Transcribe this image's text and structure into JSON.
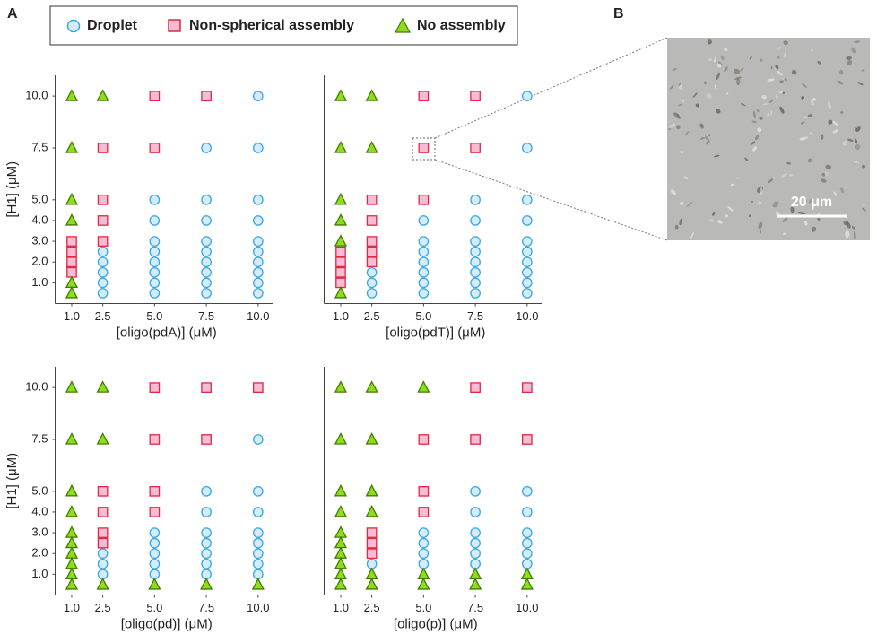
{
  "panel_labels": [
    "A",
    "B"
  ],
  "image": {
    "scale_bar": "20 μm"
  },
  "chart_data": [
    {
      "type": "scatter",
      "xlabel": "[oligo(pdA)] (μM)",
      "ylabel": "[H1] (μM)",
      "xlim": [
        0.2,
        10.7
      ],
      "ylim": [
        0,
        11
      ],
      "xticks": [
        {
          "value": 1,
          "label": "1.0"
        },
        {
          "value": 2.5,
          "label": "2.5"
        },
        {
          "value": 5,
          "label": "5.0"
        },
        {
          "value": 7.5,
          "label": "7.5"
        },
        {
          "value": 10,
          "label": "10.0"
        }
      ],
      "yticks": [
        {
          "value": 1,
          "label": "1.0"
        },
        {
          "value": 2,
          "label": "2.0"
        },
        {
          "value": 3,
          "label": "3.0"
        },
        {
          "value": 4,
          "label": "4.0"
        },
        {
          "value": 5,
          "label": "5.0"
        },
        7.5,
        {
          "value": 10,
          "label": "10.0"
        }
      ],
      "series": [
        {
          "name": "Droplet",
          "marker": "circle",
          "color": "#3aa7e6",
          "fill": "#d4ecfb",
          "x": [
            2.5,
            2.5,
            2.5,
            2.5,
            2.5,
            5,
            5,
            5,
            5,
            5,
            5,
            5,
            5,
            7.5,
            7.5,
            7.5,
            7.5,
            7.5,
            7.5,
            7.5,
            7.5,
            7.5,
            10,
            10,
            10,
            10,
            10,
            10,
            10,
            10,
            10,
            10
          ],
          "y": [
            2.5,
            2,
            1.5,
            1,
            0.5,
            5,
            4,
            3,
            2.5,
            2,
            1.5,
            1,
            0.5,
            7.5,
            5,
            4,
            3,
            2.5,
            2,
            1.5,
            1,
            0.5,
            10,
            7.5,
            5,
            4,
            3,
            2.5,
            2,
            1.5,
            1,
            0.5
          ]
        },
        {
          "name": "Non-spherical assembly",
          "marker": "square",
          "color": "#e0283f",
          "fill": "#f6bcd6",
          "x": [
            1,
            1,
            1,
            1,
            2.5,
            2.5,
            2.5,
            2.5,
            5,
            5,
            7.5
          ],
          "y": [
            3,
            2.5,
            2,
            1.5,
            7.5,
            5,
            4,
            3,
            10,
            7.5,
            10
          ]
        },
        {
          "name": "No assembly",
          "marker": "triangle",
          "color": "#3f7d00",
          "fill": "#8edc1a",
          "x": [
            1,
            1,
            1,
            1,
            1,
            1,
            2.5
          ],
          "y": [
            10,
            7.5,
            5,
            4,
            1,
            0.5,
            10
          ]
        }
      ]
    },
    {
      "type": "scatter",
      "xlabel": "[oligo(pdT)] (μM)",
      "xlim": [
        0.2,
        10.7
      ],
      "ylim": [
        0,
        11
      ],
      "xticks": [
        {
          "value": 1,
          "label": "1.0"
        },
        {
          "value": 2.5,
          "label": "2.5"
        },
        {
          "value": 5,
          "label": "5.0"
        },
        {
          "value": 7.5,
          "label": "7.5"
        },
        {
          "value": 10,
          "label": "10.0"
        }
      ],
      "series": [
        {
          "name": "Droplet",
          "marker": "circle",
          "color": "#3aa7e6",
          "fill": "#d4ecfb",
          "x": [
            2.5,
            2.5,
            2.5,
            5,
            5,
            5,
            5,
            5,
            5,
            5,
            7.5,
            7.5,
            7.5,
            7.5,
            7.5,
            7.5,
            7.5,
            7.5,
            10,
            10,
            10,
            10,
            10,
            10,
            10,
            10,
            10,
            10
          ],
          "y": [
            1.5,
            1,
            0.5,
            4,
            3,
            2.5,
            2,
            1.5,
            1,
            0.5,
            5,
            4,
            3,
            2.5,
            2,
            1.5,
            1,
            0.5,
            10,
            7.5,
            5,
            4,
            3,
            2.5,
            2,
            1.5,
            1,
            0.5
          ]
        },
        {
          "name": "Non-spherical assembly",
          "marker": "square",
          "color": "#e0283f",
          "fill": "#f6bcd6",
          "x": [
            1,
            1,
            1,
            1,
            2.5,
            2.5,
            2.5,
            2.5,
            2.5,
            5,
            5,
            5,
            7.5,
            7.5
          ],
          "y": [
            2.5,
            2,
            1.5,
            1,
            5,
            4,
            3,
            2.5,
            2,
            10,
            7.5,
            5,
            10,
            7.5
          ]
        },
        {
          "name": "No assembly",
          "marker": "triangle",
          "color": "#3f7d00",
          "fill": "#8edc1a",
          "x": [
            1,
            1,
            1,
            1,
            1,
            1,
            2.5,
            2.5
          ],
          "y": [
            10,
            7.5,
            5,
            4,
            3,
            0.5,
            10,
            7.5
          ]
        }
      ]
    },
    {
      "type": "scatter",
      "xlabel": "[oligo(pd)] (μM)",
      "ylabel": "[H1] (μM)",
      "xlim": [
        0.2,
        10.7
      ],
      "ylim": [
        0,
        11
      ],
      "xticks": [
        {
          "value": 1,
          "label": "1.0"
        },
        {
          "value": 2.5,
          "label": "2.5"
        },
        {
          "value": 5,
          "label": "5.0"
        },
        {
          "value": 7.5,
          "label": "7.5"
        },
        {
          "value": 10,
          "label": "10.0"
        }
      ],
      "yticks": [
        {
          "value": 1,
          "label": "1.0"
        },
        {
          "value": 2,
          "label": "2.0"
        },
        {
          "value": 3,
          "label": "3.0"
        },
        {
          "value": 4,
          "label": "4.0"
        },
        {
          "value": 5,
          "label": "5.0"
        },
        7.5,
        {
          "value": 10,
          "label": "10.0"
        }
      ],
      "series": [
        {
          "name": "Droplet",
          "marker": "circle",
          "color": "#3aa7e6",
          "fill": "#d4ecfb",
          "x": [
            2.5,
            2.5,
            2.5,
            5,
            5,
            5,
            5,
            5,
            7.5,
            7.5,
            7.5,
            7.5,
            7.5,
            7.5,
            7.5,
            10,
            10,
            10,
            10,
            10,
            10,
            10,
            10
          ],
          "y": [
            2,
            1.5,
            1,
            3,
            2.5,
            2,
            1.5,
            1,
            5,
            4,
            3,
            2.5,
            2,
            1.5,
            1,
            7.5,
            5,
            4,
            3,
            2.5,
            2,
            1.5,
            1
          ]
        },
        {
          "name": "Non-spherical assembly",
          "marker": "square",
          "color": "#e0283f",
          "fill": "#f6bcd6",
          "x": [
            2.5,
            2.5,
            2.5,
            2.5,
            5,
            5,
            5,
            5,
            7.5,
            7.5,
            10
          ],
          "y": [
            5,
            4,
            3,
            2.5,
            10,
            7.5,
            5,
            4,
            10,
            7.5,
            10
          ]
        },
        {
          "name": "No assembly",
          "marker": "triangle",
          "color": "#3f7d00",
          "fill": "#8edc1a",
          "x": [
            1,
            1,
            1,
            1,
            1,
            1,
            1,
            1,
            1,
            1,
            2.5,
            2.5,
            2.5,
            5,
            7.5,
            10
          ],
          "y": [
            10,
            7.5,
            5,
            4,
            3,
            2.5,
            2,
            1.5,
            1,
            0.5,
            10,
            7.5,
            0.5,
            0.5,
            0.5,
            0.5
          ]
        }
      ]
    },
    {
      "type": "scatter",
      "xlabel": "[oligo(p)] (μM)",
      "xlim": [
        0.2,
        10.7
      ],
      "ylim": [
        0,
        11
      ],
      "xticks": [
        {
          "value": 1,
          "label": "1.0"
        },
        {
          "value": 2.5,
          "label": "2.5"
        },
        {
          "value": 5,
          "label": "5.0"
        },
        {
          "value": 7.5,
          "label": "7.5"
        },
        {
          "value": 10,
          "label": "10.0"
        }
      ],
      "series": [
        {
          "name": "Droplet",
          "marker": "circle",
          "color": "#3aa7e6",
          "fill": "#d4ecfb",
          "x": [
            2.5,
            5,
            5,
            5,
            5,
            7.5,
            7.5,
            7.5,
            7.5,
            7.5,
            7.5,
            10,
            10,
            10,
            10,
            10,
            10
          ],
          "y": [
            1.5,
            3,
            2.5,
            2,
            1.5,
            5,
            4,
            3,
            2.5,
            2,
            1.5,
            5,
            4,
            3,
            2.5,
            2,
            1.5
          ]
        },
        {
          "name": "Non-spherical assembly",
          "marker": "square",
          "color": "#e0283f",
          "fill": "#f6bcd6",
          "x": [
            2.5,
            2.5,
            2.5,
            5,
            5,
            5,
            7.5,
            7.5,
            10,
            10
          ],
          "y": [
            3,
            2.5,
            2,
            7.5,
            5,
            4,
            10,
            7.5,
            10,
            7.5
          ]
        },
        {
          "name": "No assembly",
          "marker": "triangle",
          "color": "#3f7d00",
          "fill": "#8edc1a",
          "x": [
            1,
            1,
            1,
            1,
            1,
            1,
            1,
            1,
            1,
            1,
            2.5,
            2.5,
            2.5,
            2.5,
            2.5,
            2.5,
            5,
            5,
            5,
            7.5,
            7.5,
            10,
            10
          ],
          "y": [
            10,
            7.5,
            5,
            4,
            3,
            2.5,
            2,
            1.5,
            1,
            0.5,
            10,
            7.5,
            5,
            4,
            1,
            0.5,
            10,
            1,
            0.5,
            1,
            0.5,
            1,
            0.5
          ]
        }
      ]
    }
  ]
}
